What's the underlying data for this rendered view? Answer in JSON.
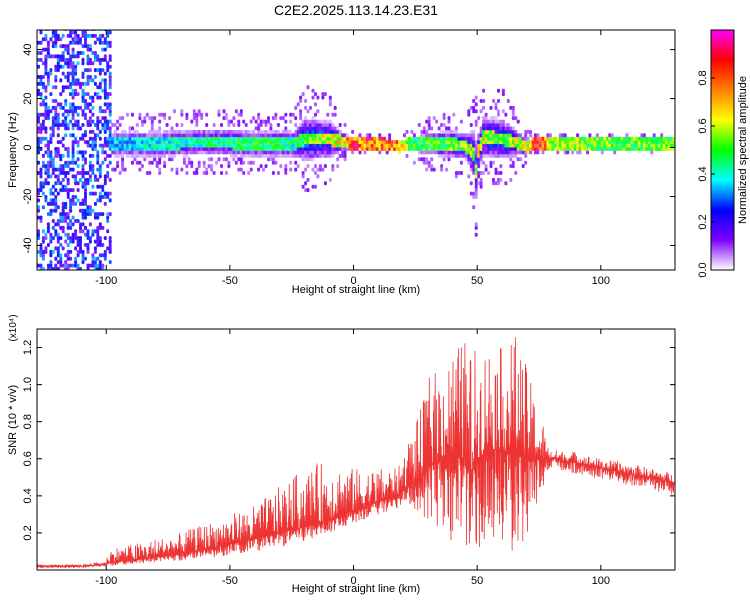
{
  "title": "C2E2.2025.113.14.23.E31",
  "chart_data": [
    {
      "type": "heatmap",
      "xlabel": "Height of straight line (km)",
      "ylabel": "Frequency (Hz)",
      "xlim": [
        -128,
        130
      ],
      "ylim": [
        -50,
        48
      ],
      "xticks": [
        -100,
        -50,
        0,
        50,
        100
      ],
      "yticks": [
        -40,
        -20,
        0,
        20,
        40
      ],
      "colorbar": {
        "label": "Normalized spectral amplitude",
        "range": [
          0.0,
          1.0
        ],
        "ticks": [
          0.0,
          0.2,
          0.4,
          0.6,
          0.8
        ],
        "tick_labels": [
          "0.0",
          "0.2",
          "0.4",
          "0.6",
          "0.8"
        ],
        "colors": [
          "#ffffff",
          "#7f00ff",
          "#0000ff",
          "#00ffff",
          "#00ff00",
          "#ffff00",
          "#ff8000",
          "#ff0000",
          "#ff00ff"
        ]
      },
      "ridge": {
        "x": [
          -98,
          -80,
          -60,
          -40,
          -25,
          -20,
          -10,
          -5,
          0,
          10,
          18,
          22,
          30,
          40,
          45,
          48,
          49,
          50,
          52,
          60,
          70,
          72,
          75,
          78,
          80,
          100,
          130
        ],
        "frequency": [
          1,
          1,
          2,
          1,
          1,
          3,
          3,
          2,
          1,
          1,
          0,
          1,
          1,
          1,
          0,
          -3,
          -10,
          -2,
          4,
          3,
          0,
          1,
          1,
          1,
          1,
          1,
          1
        ],
        "spread": [
          6,
          6,
          6,
          6,
          6,
          10,
          8,
          4,
          2,
          2,
          2,
          3,
          5,
          6,
          6,
          10,
          14,
          8,
          9,
          9,
          3,
          2,
          2,
          2,
          2,
          2,
          2
        ],
        "peak_amplitude": [
          0.35,
          0.4,
          0.45,
          0.5,
          0.45,
          0.55,
          0.65,
          0.7,
          0.85,
          0.8,
          0.8,
          0.5,
          0.5,
          0.55,
          0.6,
          0.6,
          0.55,
          0.65,
          0.6,
          0.55,
          0.7,
          0.9,
          0.9,
          0.7,
          0.6,
          0.55,
          0.55
        ]
      },
      "noise_band": {
        "x_range": [
          -128,
          -98
        ],
        "amplitude": 0.25
      }
    },
    {
      "type": "line",
      "xlabel": "Height of straight line (km)",
      "ylabel": "SNR (10 * v/v)",
      "multiplier": "(x10⁴)",
      "xlim": [
        -128,
        130
      ],
      "ylim": [
        0,
        1.3
      ],
      "xticks": [
        -100,
        -50,
        0,
        50,
        100
      ],
      "yticks": [
        0.2,
        0.4,
        0.6,
        0.8,
        1.0,
        1.2
      ],
      "ytick_labels": [
        "0.2",
        "0.4",
        "0.6",
        "0.8",
        "1.0",
        "1.2"
      ],
      "color": "#ee3333",
      "envelope": {
        "x": [
          -128,
          -110,
          -100,
          -99,
          -90,
          -80,
          -70,
          -60,
          -50,
          -40,
          -30,
          -20,
          -10,
          0,
          10,
          18,
          22,
          28,
          30,
          35,
          40,
          45,
          47,
          50,
          55,
          60,
          65,
          70,
          75,
          77,
          78,
          80,
          90,
          100,
          110,
          120,
          130
        ],
        "base": [
          0.02,
          0.02,
          0.03,
          0.04,
          0.05,
          0.07,
          0.09,
          0.11,
          0.14,
          0.17,
          0.2,
          0.23,
          0.27,
          0.32,
          0.37,
          0.4,
          0.45,
          0.5,
          0.55,
          0.6,
          0.62,
          0.6,
          0.5,
          0.6,
          0.65,
          0.65,
          0.62,
          0.6,
          0.6,
          0.55,
          0.6,
          0.6,
          0.58,
          0.55,
          0.52,
          0.5,
          0.47
        ],
        "upper": [
          0.03,
          0.03,
          0.05,
          0.12,
          0.14,
          0.17,
          0.2,
          0.25,
          0.3,
          0.35,
          0.45,
          0.55,
          0.6,
          0.55,
          0.55,
          0.55,
          0.7,
          0.9,
          1.05,
          1.1,
          1.2,
          1.25,
          1.2,
          1.2,
          1.25,
          1.2,
          1.3,
          1.1,
          0.85,
          0.8,
          0.68,
          0.65,
          0.64,
          0.6,
          0.58,
          0.55,
          0.52
        ],
        "lower": [
          0.01,
          0.01,
          0.02,
          0.02,
          0.03,
          0.04,
          0.05,
          0.06,
          0.08,
          0.1,
          0.12,
          0.15,
          0.2,
          0.25,
          0.3,
          0.33,
          0.35,
          0.3,
          0.25,
          0.2,
          0.15,
          0.1,
          0.05,
          0.1,
          0.1,
          0.05,
          0.1,
          0.15,
          0.4,
          0.45,
          0.52,
          0.54,
          0.52,
          0.49,
          0.46,
          0.43,
          0.4
        ]
      }
    }
  ]
}
